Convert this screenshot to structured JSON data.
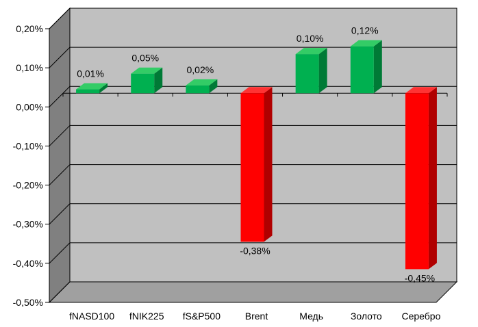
{
  "chart_data": {
    "type": "bar",
    "style": "3d-column",
    "categories": [
      "fNASD100",
      "fNIK225",
      "fS&P500",
      "Brent",
      "Медь",
      "Золото",
      "Серебро"
    ],
    "values": [
      0.01,
      0.05,
      0.02,
      -0.38,
      0.1,
      0.12,
      -0.45
    ],
    "data_labels": [
      "0,01%",
      "0,05%",
      "0,02%",
      "-0,38%",
      "0,10%",
      "0,12%",
      "-0,45%"
    ],
    "y_ticks": [
      0.2,
      0.1,
      0.0,
      -0.1,
      -0.2,
      -0.3,
      -0.4,
      -0.5
    ],
    "y_tick_labels": [
      "0,20%",
      "0,10%",
      "0,00%",
      "-0,10%",
      "-0,20%",
      "-0,30%",
      "-0,40%",
      "-0,50%"
    ],
    "ylim": [
      -0.5,
      0.2
    ],
    "grid": true,
    "legend": "none",
    "title": "",
    "xlabel": "",
    "ylabel": "",
    "colors": {
      "positive_front": "#00b050",
      "positive_top": "#33cc66",
      "positive_side": "#007a36",
      "negative_front": "#ff0000",
      "negative_top": "#ff3333",
      "negative_side": "#b00000",
      "wall": "#c0c0c0",
      "side_wall": "#808080",
      "floor": "#a0a0a0",
      "gridline": "#000000"
    }
  }
}
